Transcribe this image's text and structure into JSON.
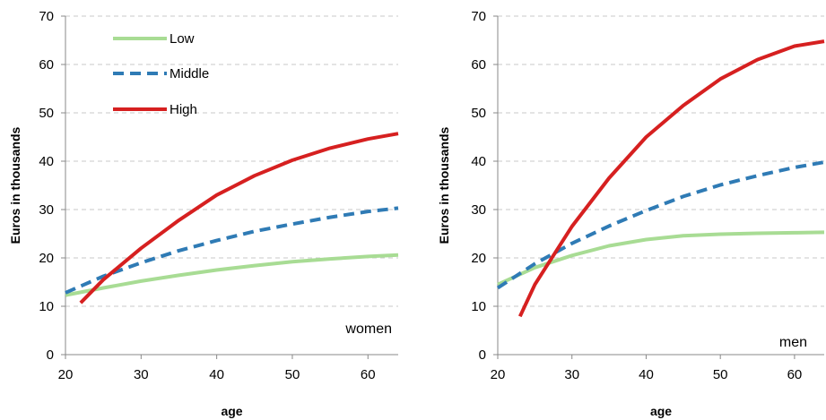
{
  "colors": {
    "Low": "#a8dc94",
    "Middle": "#2f7bb5",
    "High": "#d62020",
    "grid": "#c8c8c8",
    "axis": "#888888"
  },
  "chart_data": [
    {
      "type": "line",
      "panel_label": "women",
      "xlabel": "age",
      "ylabel": "Euros in thousands",
      "xlim": [
        20,
        64
      ],
      "ylim": [
        0,
        70
      ],
      "xticks": [
        "20",
        "30",
        "40",
        "50",
        "60"
      ],
      "yticks": [
        "0",
        "10",
        "20",
        "30",
        "40",
        "50",
        "60",
        "70"
      ],
      "grid": "horizontal dashed",
      "legend": "top-left",
      "series": [
        {
          "name": "Low",
          "style": "solid",
          "x": [
            20,
            25,
            30,
            35,
            40,
            45,
            50,
            55,
            60,
            64
          ],
          "y": [
            12.3,
            13.8,
            15.2,
            16.4,
            17.5,
            18.4,
            19.2,
            19.8,
            20.3,
            20.6
          ]
        },
        {
          "name": "Middle",
          "style": "dashed",
          "x": [
            20,
            25,
            30,
            35,
            40,
            45,
            50,
            55,
            60,
            64
          ],
          "y": [
            12.8,
            16.2,
            19.0,
            21.5,
            23.6,
            25.5,
            27.0,
            28.4,
            29.6,
            30.3
          ]
        },
        {
          "name": "High",
          "style": "solid",
          "x": [
            22,
            25,
            30,
            35,
            40,
            45,
            50,
            55,
            60,
            64
          ],
          "y": [
            10.7,
            15.5,
            22.0,
            27.8,
            33.0,
            37.0,
            40.2,
            42.7,
            44.6,
            45.7
          ]
        }
      ]
    },
    {
      "type": "line",
      "panel_label": "men",
      "xlabel": "age",
      "ylabel": "Euros in thousands",
      "xlim": [
        20,
        64
      ],
      "ylim": [
        0,
        70
      ],
      "xticks": [
        "20",
        "30",
        "40",
        "50",
        "60"
      ],
      "yticks": [
        "0",
        "10",
        "20",
        "30",
        "40",
        "50",
        "60",
        "70"
      ],
      "grid": "horizontal dashed",
      "legend": "none",
      "series": [
        {
          "name": "Low",
          "style": "solid",
          "x": [
            20,
            25,
            30,
            35,
            40,
            45,
            50,
            55,
            60,
            64
          ],
          "y": [
            14.5,
            18.0,
            20.5,
            22.5,
            23.8,
            24.6,
            24.9,
            25.1,
            25.2,
            25.3
          ]
        },
        {
          "name": "Middle",
          "style": "dashed",
          "x": [
            20,
            25,
            30,
            35,
            40,
            45,
            50,
            55,
            60,
            64
          ],
          "y": [
            13.8,
            18.8,
            23.0,
            26.6,
            29.8,
            32.7,
            35.1,
            37.0,
            38.7,
            39.8
          ]
        },
        {
          "name": "High",
          "style": "solid",
          "x": [
            23,
            25,
            30,
            35,
            40,
            45,
            50,
            55,
            60,
            64
          ],
          "y": [
            7.9,
            14.5,
            26.5,
            36.5,
            45.0,
            51.5,
            57.0,
            61.0,
            63.8,
            64.8
          ]
        }
      ]
    }
  ]
}
